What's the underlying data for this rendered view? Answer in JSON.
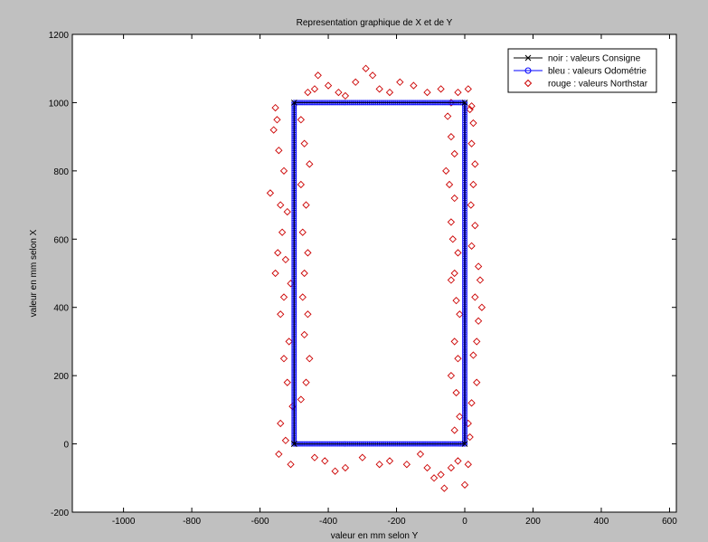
{
  "chart_data": {
    "type": "scatter",
    "title": "Representation graphique de X et de Y",
    "xlabel": "valeur en mm selon Y",
    "ylabel": "valeur en mm selon X",
    "xlim": [
      -1150,
      620
    ],
    "ylim": [
      -200,
      1200
    ],
    "xticks": [
      -1000,
      -800,
      -600,
      -400,
      -200,
      0,
      200,
      400,
      600
    ],
    "yticks": [
      -200,
      0,
      200,
      400,
      600,
      800,
      1000,
      1200
    ],
    "grid": false,
    "legend_position": "top-right",
    "colors": {
      "consigne": "#000000",
      "odometrie": "#0000ff",
      "northstar": "#cc0000",
      "background": "#c0c0c0",
      "axes": "#ffffff"
    },
    "series": [
      {
        "name": "noir : valeurs Consigne",
        "marker": "x",
        "points": [
          [
            -500,
            0
          ],
          [
            -500,
            1000
          ],
          [
            0,
            1000
          ],
          [
            0,
            0
          ],
          [
            -500,
            0
          ]
        ]
      },
      {
        "name": "bleu : valeurs Odométrie",
        "marker": "o",
        "points": [
          [
            -500,
            0
          ],
          [
            -500,
            1000
          ],
          [
            0,
            1000
          ],
          [
            0,
            0
          ],
          [
            -500,
            0
          ]
        ]
      },
      {
        "name": "rouge : valeurs Northstar",
        "marker": "diamond",
        "points": [
          [
            -555,
            985
          ],
          [
            -550,
            950
          ],
          [
            -560,
            920
          ],
          [
            -545,
            860
          ],
          [
            -530,
            800
          ],
          [
            -570,
            735
          ],
          [
            -540,
            700
          ],
          [
            -520,
            680
          ],
          [
            -535,
            620
          ],
          [
            -548,
            560
          ],
          [
            -525,
            540
          ],
          [
            -555,
            500
          ],
          [
            -510,
            470
          ],
          [
            -530,
            430
          ],
          [
            -540,
            380
          ],
          [
            -515,
            300
          ],
          [
            -530,
            250
          ],
          [
            -520,
            180
          ],
          [
            -505,
            110
          ],
          [
            -540,
            60
          ],
          [
            -525,
            10
          ],
          [
            -545,
            -30
          ],
          [
            -510,
            -60
          ],
          [
            -480,
            950
          ],
          [
            -470,
            880
          ],
          [
            -455,
            820
          ],
          [
            -480,
            760
          ],
          [
            -465,
            700
          ],
          [
            -475,
            620
          ],
          [
            -460,
            560
          ],
          [
            -470,
            500
          ],
          [
            -475,
            430
          ],
          [
            -460,
            380
          ],
          [
            -470,
            320
          ],
          [
            -455,
            250
          ],
          [
            -465,
            180
          ],
          [
            -480,
            130
          ],
          [
            -460,
            1030
          ],
          [
            -440,
            1040
          ],
          [
            -430,
            1080
          ],
          [
            -400,
            1050
          ],
          [
            -370,
            1030
          ],
          [
            -350,
            1020
          ],
          [
            -320,
            1060
          ],
          [
            -290,
            1100
          ],
          [
            -270,
            1080
          ],
          [
            -250,
            1040
          ],
          [
            -220,
            1030
          ],
          [
            -190,
            1060
          ],
          [
            -150,
            1050
          ],
          [
            -110,
            1030
          ],
          [
            -70,
            1040
          ],
          [
            -40,
            1000
          ],
          [
            -20,
            1030
          ],
          [
            10,
            1040
          ],
          [
            20,
            990
          ],
          [
            -440,
            -40
          ],
          [
            -410,
            -50
          ],
          [
            -380,
            -80
          ],
          [
            -350,
            -70
          ],
          [
            -300,
            -40
          ],
          [
            -250,
            -60
          ],
          [
            -220,
            -50
          ],
          [
            -170,
            -60
          ],
          [
            -130,
            -30
          ],
          [
            -110,
            -70
          ],
          [
            -90,
            -100
          ],
          [
            -70,
            -90
          ],
          [
            -60,
            -130
          ],
          [
            -40,
            -70
          ],
          [
            -20,
            -50
          ],
          [
            0,
            -120
          ],
          [
            10,
            -60
          ],
          [
            -50,
            960
          ],
          [
            -40,
            900
          ],
          [
            -30,
            850
          ],
          [
            -55,
            800
          ],
          [
            -45,
            760
          ],
          [
            -30,
            720
          ],
          [
            -40,
            650
          ],
          [
            -35,
            600
          ],
          [
            -20,
            560
          ],
          [
            -30,
            500
          ],
          [
            -40,
            480
          ],
          [
            -25,
            420
          ],
          [
            -15,
            380
          ],
          [
            -30,
            300
          ],
          [
            -20,
            250
          ],
          [
            -40,
            200
          ],
          [
            -25,
            150
          ],
          [
            -15,
            80
          ],
          [
            -30,
            40
          ],
          [
            15,
            980
          ],
          [
            25,
            940
          ],
          [
            20,
            880
          ],
          [
            30,
            820
          ],
          [
            25,
            760
          ],
          [
            18,
            700
          ],
          [
            30,
            640
          ],
          [
            20,
            580
          ],
          [
            40,
            520
          ],
          [
            45,
            480
          ],
          [
            30,
            430
          ],
          [
            50,
            400
          ],
          [
            40,
            360
          ],
          [
            35,
            300
          ],
          [
            25,
            260
          ],
          [
            35,
            180
          ],
          [
            20,
            120
          ],
          [
            10,
            60
          ],
          [
            15,
            20
          ]
        ]
      }
    ]
  }
}
